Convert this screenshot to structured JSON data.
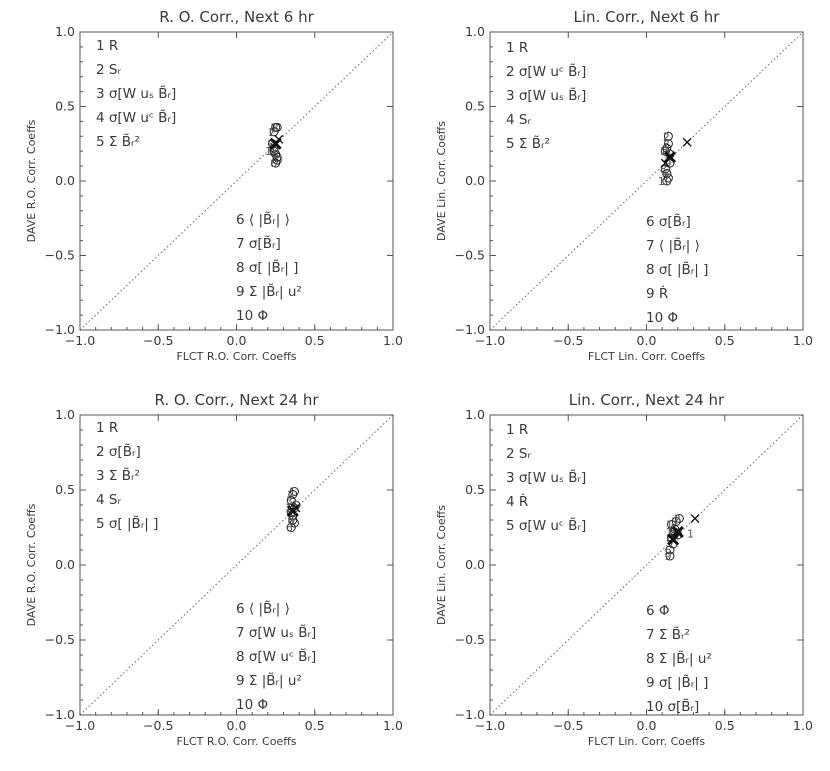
{
  "chart_data": [
    {
      "type": "scatter",
      "title": "R. O. Corr., Next 6 hr",
      "xlabel": "FLCT R.O. Corr. Coeffs",
      "ylabel": "DAVE R.O. Corr. Coeffs",
      "xlim": [
        -1.0,
        1.0
      ],
      "ylim": [
        -1.0,
        1.0
      ],
      "xticks": [
        "−1.0",
        "−0.5",
        "0.0",
        "0.5",
        "1.0"
      ],
      "yticks": [
        "−1.0",
        "−0.5",
        "0.0",
        "0.5",
        "1.0"
      ],
      "reference_line": "y = x",
      "legend_top": [
        "1 R",
        "2 Sᵣ",
        "3 σ[W uₛ B̃ᵣ]",
        "4 σ[W uᶜ B̃ᵣ]",
        "5 Σ B̃ᵣ²"
      ],
      "legend_bottom": [
        "6 ⟨ |B̃ᵣ| ⟩",
        "7 σ[B̃ᵣ]",
        "8 σ[ |B̃ᵣ| ]",
        "9 Σ |B̃ᵣ| u²",
        "10 Φ"
      ],
      "points": [
        {
          "label": "1",
          "x": 0.25,
          "y": 0.36,
          "marker": "circle"
        },
        {
          "label": "2",
          "x": 0.24,
          "y": 0.33,
          "marker": "circle"
        },
        {
          "label": "3",
          "x": 0.26,
          "y": 0.36,
          "marker": "circle"
        },
        {
          "label": "4",
          "x": 0.25,
          "y": 0.18,
          "marker": "circle"
        },
        {
          "label": "5",
          "x": 0.23,
          "y": 0.25,
          "marker": "circle"
        },
        {
          "label": "6",
          "x": 0.26,
          "y": 0.14,
          "marker": "circle"
        },
        {
          "label": "7",
          "x": 0.24,
          "y": 0.22,
          "marker": "circle"
        },
        {
          "label": "8",
          "x": 0.25,
          "y": 0.12,
          "marker": "circle"
        },
        {
          "label": "9",
          "x": 0.26,
          "y": 0.16,
          "marker": "circle"
        },
        {
          "label": "10",
          "x": 0.24,
          "y": 0.2,
          "marker": "circle"
        },
        {
          "label": "",
          "x": 0.25,
          "y": 0.25,
          "marker": "x-bold"
        },
        {
          "label": "",
          "x": 0.27,
          "y": 0.28,
          "marker": "x"
        }
      ]
    },
    {
      "type": "scatter",
      "title": "Lin. Corr., Next 6 hr",
      "xlabel": "FLCT Lin. Corr. Coeffs",
      "ylabel": "DAVE Lin. Corr. Coeffs",
      "xlim": [
        -1.0,
        1.0
      ],
      "ylim": [
        -1.0,
        1.0
      ],
      "xticks": [
        "−1.0",
        "−0.5",
        "0.0",
        "0.5",
        "1.0"
      ],
      "yticks": [
        "−1.0",
        "−0.5",
        "0.0",
        "0.5",
        "1.0"
      ],
      "reference_line": "y = x",
      "legend_top": [
        "1 R",
        "2 σ[W uᶜ B̃ᵣ]",
        "3 σ[W uₛ B̃ᵣ]",
        "4 Sᵣ",
        "5 Σ B̃ᵣ²"
      ],
      "legend_bottom": [
        "6 σ[B̃ᵣ]",
        "7 ⟨ |B̃ᵣ| ⟩",
        "8 σ[ |B̃ᵣ| ]",
        "9 Ṙ",
        "10 Φ"
      ],
      "points": [
        {
          "label": "1",
          "x": 0.12,
          "y": 0.2,
          "marker": "circle"
        },
        {
          "label": "2",
          "x": 0.14,
          "y": 0.3,
          "marker": "circle"
        },
        {
          "label": "3",
          "x": 0.14,
          "y": 0.25,
          "marker": "circle"
        },
        {
          "label": "4",
          "x": 0.13,
          "y": 0.22,
          "marker": "circle"
        },
        {
          "label": "5",
          "x": 0.15,
          "y": 0.18,
          "marker": "circle"
        },
        {
          "label": "6",
          "x": 0.13,
          "y": 0.05,
          "marker": "circle"
        },
        {
          "label": "7",
          "x": 0.14,
          "y": 0.02,
          "marker": "circle"
        },
        {
          "label": "8",
          "x": 0.12,
          "y": 0.08,
          "marker": "circle"
        },
        {
          "label": "9",
          "x": 0.15,
          "y": 0.12,
          "marker": "circle"
        },
        {
          "label": "10",
          "x": 0.13,
          "y": 0.0,
          "marker": "circle"
        },
        {
          "label": "",
          "x": 0.15,
          "y": 0.16,
          "marker": "x-bold"
        },
        {
          "label": "",
          "x": 0.12,
          "y": 0.12,
          "marker": "x"
        },
        {
          "label": "",
          "x": 0.26,
          "y": 0.26,
          "marker": "x"
        }
      ]
    },
    {
      "type": "scatter",
      "title": "R. O. Corr., Next 24 hr",
      "xlabel": "FLCT R.O. Corr. Coeffs",
      "ylabel": "DAVE R.O. Corr. Coeffs",
      "xlim": [
        -1.0,
        1.0
      ],
      "ylim": [
        -1.0,
        1.0
      ],
      "xticks": [
        "−1.0",
        "−0.5",
        "0.0",
        "0.5",
        "1.0"
      ],
      "yticks": [
        "−1.0",
        "−0.5",
        "0.0",
        "0.5",
        "1.0"
      ],
      "reference_line": "y = x",
      "legend_top": [
        "1 R",
        "2 σ[B̃ᵣ]",
        "3 Σ B̃ᵣ²",
        "4 Sᵣ",
        "5 σ[ |B̃ᵣ| ]"
      ],
      "legend_bottom": [
        "6 ⟨ |B̃ᵣ| ⟩",
        "7 σ[W uₛ B̃ᵣ]",
        "8 σ[W uᶜ B̃ᵣ]",
        "9 Σ |B̃ᵣ| u²",
        "10 Φ"
      ],
      "points": [
        {
          "label": "1",
          "x": 0.37,
          "y": 0.49,
          "marker": "circle"
        },
        {
          "label": "2",
          "x": 0.36,
          "y": 0.47,
          "marker": "circle"
        },
        {
          "label": "3",
          "x": 0.35,
          "y": 0.43,
          "marker": "circle"
        },
        {
          "label": "4",
          "x": 0.38,
          "y": 0.4,
          "marker": "circle"
        },
        {
          "label": "5",
          "x": 0.36,
          "y": 0.33,
          "marker": "circle"
        },
        {
          "label": "6",
          "x": 0.35,
          "y": 0.25,
          "marker": "circle"
        },
        {
          "label": "7",
          "x": 0.37,
          "y": 0.28,
          "marker": "circle"
        },
        {
          "label": "8",
          "x": 0.36,
          "y": 0.3,
          "marker": "circle"
        },
        {
          "label": "9",
          "x": 0.35,
          "y": 0.35,
          "marker": "circle"
        },
        {
          "label": "10",
          "x": 0.37,
          "y": 0.38,
          "marker": "circle"
        },
        {
          "label": "",
          "x": 0.36,
          "y": 0.36,
          "marker": "x-bold"
        },
        {
          "label": "",
          "x": 0.38,
          "y": 0.38,
          "marker": "x"
        }
      ]
    },
    {
      "type": "scatter",
      "title": "Lin. Corr., Next 24 hr",
      "xlabel": "FLCT Lin. Corr. Coeffs",
      "ylabel": "DAVE Lin. Corr. Coeffs",
      "xlim": [
        -1.0,
        1.0
      ],
      "ylim": [
        -1.0,
        1.0
      ],
      "xticks": [
        "−1.0",
        "−0.5",
        "0.0",
        "0.5",
        "1.0"
      ],
      "yticks": [
        "−1.0",
        "−0.5",
        "0.0",
        "0.5",
        "1.0"
      ],
      "reference_line": "y = x",
      "legend_top": [
        "1 R",
        "2 Sᵣ",
        "3 σ[W uₛ B̃ᵣ]",
        "4 Ṙ",
        "5 σ[W uᶜ B̃ᵣ]"
      ],
      "legend_bottom": [
        "6 Φ̇",
        "7 Σ B̃ᵣ²",
        "8 Σ |B̃ᵣ| u²",
        "9 σ[ |B̃ᵣ| ]",
        "10 σ[B̃ᵣ]"
      ],
      "points": [
        {
          "label": "1",
          "x": 0.16,
          "y": 0.27,
          "marker": "circle"
        },
        {
          "label": "2",
          "x": 0.21,
          "y": 0.31,
          "marker": "circle"
        },
        {
          "label": "3",
          "x": 0.19,
          "y": 0.29,
          "marker": "circle"
        },
        {
          "label": "4",
          "x": 0.18,
          "y": 0.24,
          "marker": "circle"
        },
        {
          "label": "5",
          "x": 0.2,
          "y": 0.2,
          "marker": "circle"
        },
        {
          "label": "6",
          "x": 0.15,
          "y": 0.1,
          "marker": "circle"
        },
        {
          "label": "7",
          "x": 0.17,
          "y": 0.14,
          "marker": "circle"
        },
        {
          "label": "8",
          "x": 0.16,
          "y": 0.18,
          "marker": "circle"
        },
        {
          "label": "9",
          "x": 0.15,
          "y": 0.06,
          "marker": "circle"
        },
        {
          "label": "10",
          "x": 0.18,
          "y": 0.22,
          "marker": "circle"
        },
        {
          "label": "",
          "x": 0.2,
          "y": 0.22,
          "marker": "x-bold"
        },
        {
          "label": "",
          "x": 0.17,
          "y": 0.17,
          "marker": "x-bold"
        },
        {
          "label": "",
          "x": 0.31,
          "y": 0.31,
          "marker": "x"
        },
        {
          "label": "1",
          "x": 0.23,
          "y": 0.21,
          "marker": "label-only"
        }
      ]
    }
  ]
}
